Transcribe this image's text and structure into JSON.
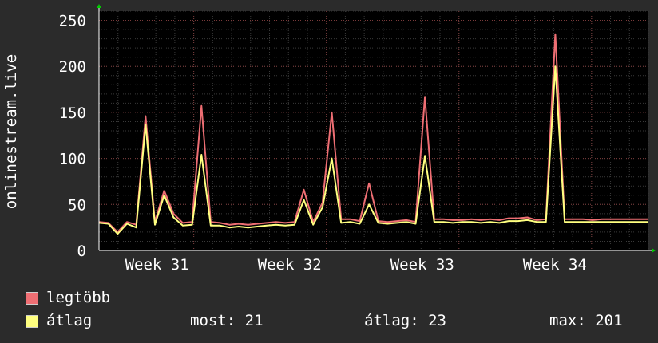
{
  "chart_data": {
    "type": "line",
    "ylabel": "onlinestream.live",
    "xlabel": "",
    "ylim": [
      0,
      260
    ],
    "yticks": [
      0,
      50,
      100,
      150,
      200,
      250
    ],
    "xticks": [
      {
        "label": "Week 31",
        "t": 7
      },
      {
        "label": "Week 32",
        "t": 14
      },
      {
        "label": "Week 33",
        "t": 21
      },
      {
        "label": "Week 34",
        "t": 28
      }
    ],
    "xlim": [
      2,
      31
    ],
    "grid": true,
    "series": [
      {
        "name": "legtöbb",
        "color": "#ee6e73",
        "values": [
          31,
          30,
          20,
          31,
          28,
          146,
          31,
          65,
          40,
          30,
          31,
          157,
          31,
          30,
          28,
          29,
          28,
          29,
          30,
          31,
          30,
          31,
          66,
          31,
          52,
          150,
          34,
          34,
          32,
          73,
          32,
          31,
          32,
          33,
          31,
          167,
          34,
          34,
          33,
          33,
          34,
          33,
          34,
          33,
          35,
          35,
          36,
          33,
          34,
          235,
          34,
          34,
          34,
          33,
          34,
          34,
          34,
          34,
          34,
          34
        ]
      },
      {
        "name": "átlag",
        "color": "#ffff80",
        "values": [
          30,
          29,
          18,
          29,
          25,
          137,
          28,
          60,
          36,
          27,
          28,
          104,
          27,
          27,
          25,
          26,
          25,
          26,
          27,
          28,
          27,
          28,
          55,
          28,
          47,
          100,
          30,
          31,
          29,
          50,
          30,
          29,
          30,
          31,
          29,
          103,
          31,
          31,
          30,
          31,
          31,
          30,
          31,
          30,
          32,
          32,
          33,
          31,
          31,
          200,
          31,
          31,
          31,
          31,
          31,
          31,
          31,
          31,
          31,
          31
        ]
      }
    ],
    "legend": "bottom-left"
  },
  "legend": {
    "item1": "legtöbb",
    "item2": "átlag",
    "stat_most": "most: 21",
    "stat_atlag": "átlag: 23",
    "stat_max": "max: 201"
  }
}
